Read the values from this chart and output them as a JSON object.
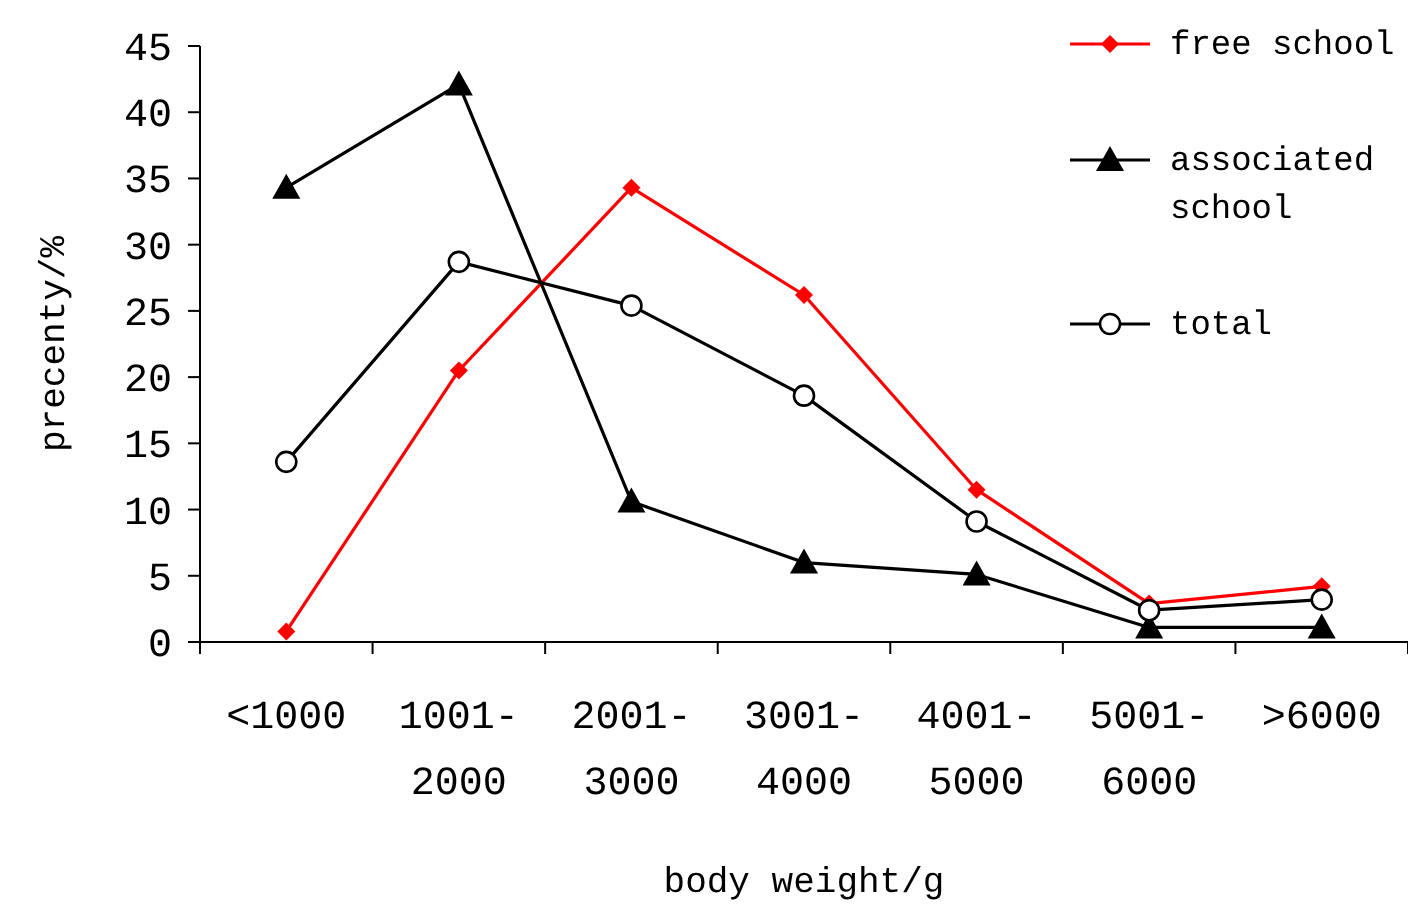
{
  "chart_data": {
    "type": "line",
    "xlabel": "body weight/g",
    "ylabel": "precenty/%",
    "categories": [
      "<1000",
      "1001-2000",
      "2001-3000",
      "3001-4000",
      "4001-5000",
      "5001-6000",
      ">6000"
    ],
    "series": [
      {
        "name": "free school",
        "color": "#ff0000",
        "marker": "diamond",
        "values": [
          0.8,
          20.5,
          34.3,
          26.2,
          11.5,
          2.9,
          4.2
        ]
      },
      {
        "name": "associated school",
        "color": "#000000",
        "marker": "triangle",
        "values": [
          34.3,
          42.1,
          10.6,
          6.0,
          5.1,
          1.1,
          1.1
        ]
      },
      {
        "name": "total",
        "color": "#000000",
        "marker": "circle",
        "values": [
          13.6,
          28.7,
          25.4,
          18.6,
          9.1,
          2.4,
          3.2
        ]
      }
    ],
    "ylim": [
      0,
      45
    ],
    "yticks": [
      0,
      5,
      10,
      15,
      20,
      25,
      30,
      35,
      40,
      45
    ],
    "legend": "top right",
    "grid": false
  }
}
